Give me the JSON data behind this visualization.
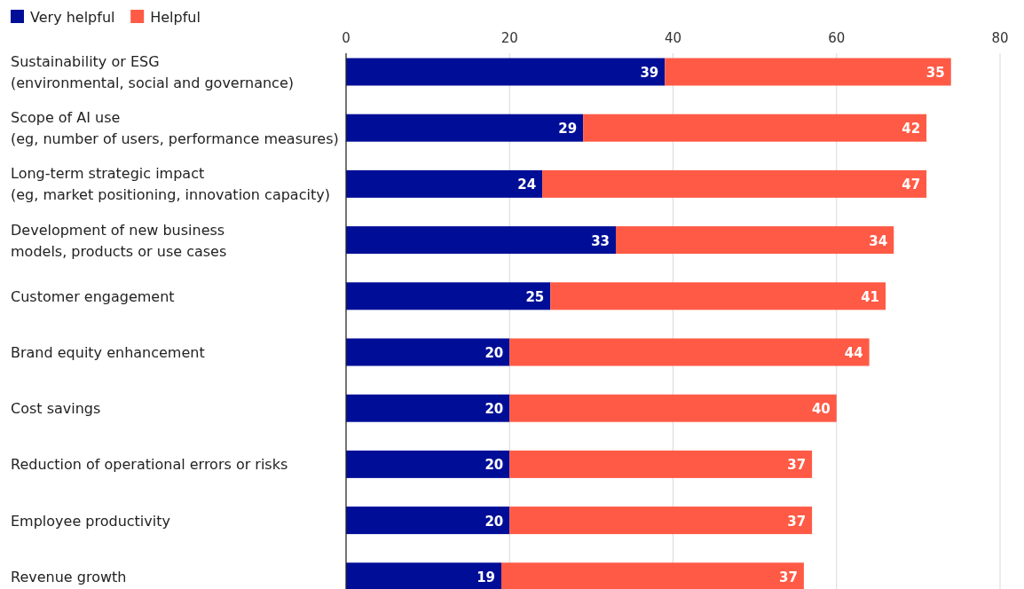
{
  "chart_data": {
    "type": "bar",
    "orientation": "horizontal",
    "stacked": true,
    "data_labels": true,
    "legend": "top left",
    "grid": "x",
    "categories": [
      "Sustainability or ESG\n(environmental, social and governance)",
      "Scope of AI use\n(eg, number of users, performance measures)",
      "Long-term strategic impact\n(eg, market positioning, innovation capacity)",
      "Development of new business\nmodels, products or use cases",
      "Customer engagement",
      "Brand equity enhancement",
      "Cost savings",
      "Reduction of operational errors or risks",
      "Employee productivity",
      "Revenue growth"
    ],
    "series": [
      {
        "name": "Very helpful",
        "color": "#000e97",
        "values": [
          39,
          29,
          24,
          33,
          25,
          20,
          20,
          20,
          20,
          19
        ]
      },
      {
        "name": "Helpful",
        "color": "#ff5a45",
        "values": [
          35,
          42,
          47,
          34,
          41,
          44,
          40,
          37,
          37,
          37
        ]
      }
    ],
    "xlim": [
      0,
      80
    ],
    "xticks": [
      0,
      20,
      40,
      60,
      80
    ]
  }
}
